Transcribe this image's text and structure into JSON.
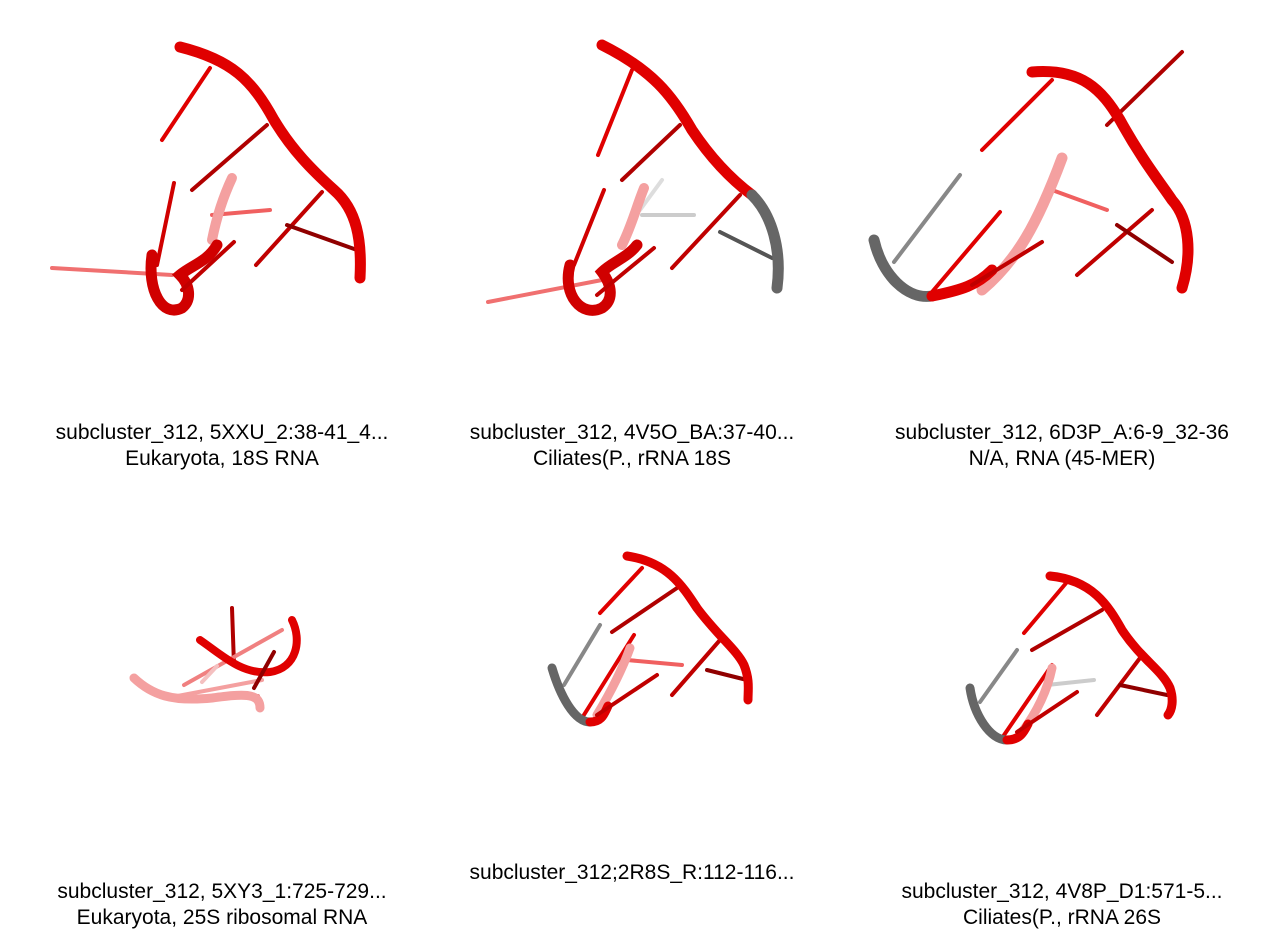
{
  "panels": [
    {
      "line1": "subcluster_312, 5XXU_2:38-41_4...",
      "line2": "Eukaryota, 18S RNA"
    },
    {
      "line1": "subcluster_312, 4V5O_BA:37-40...",
      "line2": "Ciliates(P., rRNA 18S"
    },
    {
      "line1": "subcluster_312, 6D3P_A:6-9_32-36",
      "line2": "N/A, RNA (45-MER)"
    },
    {
      "line1": "subcluster_312, 5XY3_1:725-729...",
      "line2": "Eukaryota, 25S ribosomal RNA"
    },
    {
      "line1": "subcluster_312;2R8S_R:112-116...",
      "line2": ""
    },
    {
      "line1": "subcluster_312, 4V8P_D1:571-5...",
      "line2": "Ciliates(P., rRNA 26S"
    }
  ],
  "colors": {
    "backbone": "#e00000",
    "dark": "#b00000",
    "grey": "#666666",
    "faded": "#f08080"
  }
}
